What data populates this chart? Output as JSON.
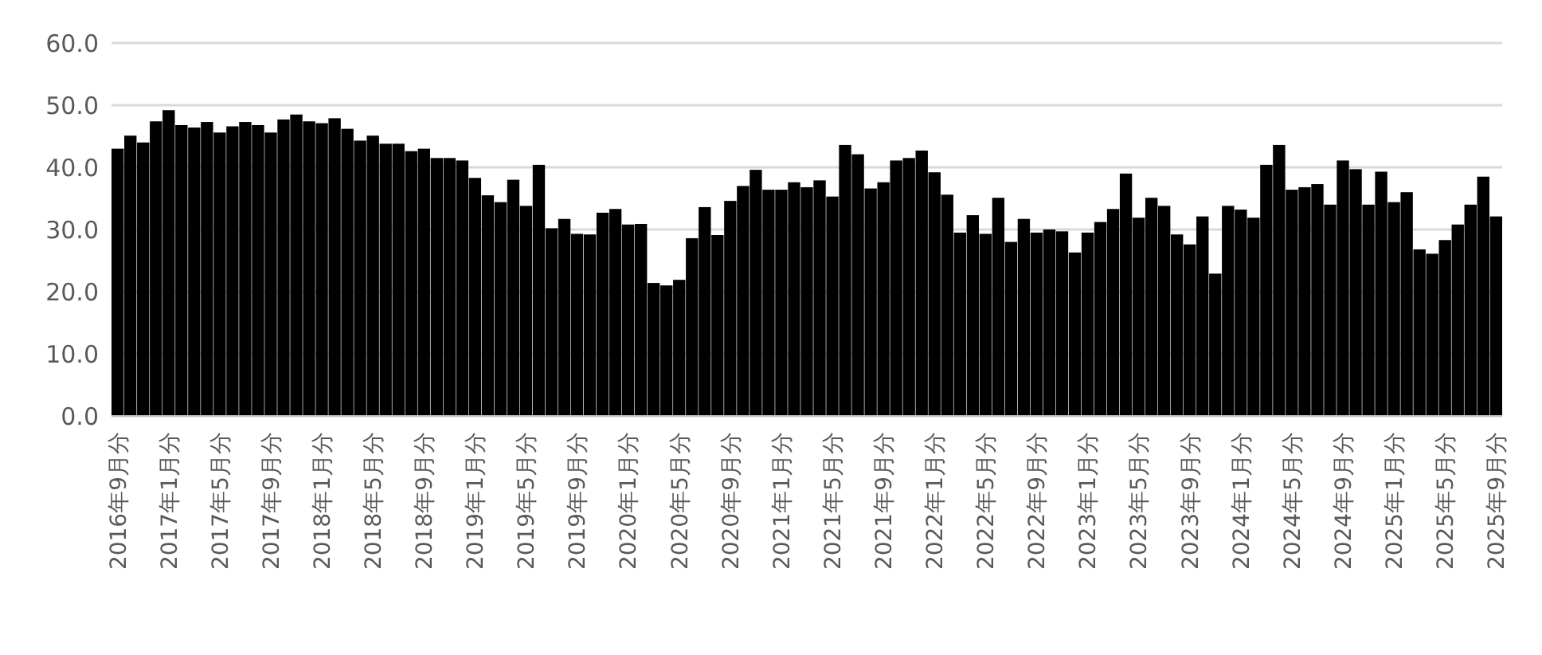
{
  "chart_data": {
    "type": "bar",
    "color": "#000000",
    "grid": "y",
    "categories": [
      "2016年9月分",
      null,
      null,
      null,
      "2017年1月分",
      null,
      null,
      null,
      "2017年5月分",
      null,
      null,
      null,
      "2017年9月分",
      null,
      null,
      null,
      "2018年1月分",
      null,
      null,
      null,
      "2018年5月分",
      null,
      null,
      null,
      "2018年9月分",
      null,
      null,
      null,
      "2019年1月分",
      null,
      null,
      null,
      "2019年5月分",
      null,
      null,
      null,
      "2019年9月分",
      null,
      null,
      null,
      "2020年1月分",
      null,
      null,
      null,
      "2020年5月分",
      null,
      null,
      null,
      "2020年9月分",
      null,
      null,
      null,
      "2021年1月分",
      null,
      null,
      null,
      "2021年5月分",
      null,
      null,
      null,
      "2021年9月分",
      null,
      null,
      null,
      "2022年1月分",
      null,
      null,
      null,
      "2022年5月分",
      null,
      null,
      null,
      "2022年9月分",
      null,
      null,
      null,
      "2023年1月分",
      null,
      null,
      null,
      "2023年5月分",
      null,
      null,
      null,
      "2023年9月分",
      null,
      null,
      null,
      "2024年1月分",
      null,
      null,
      null,
      "2024年5月分",
      null,
      null,
      null,
      "2024年9月分",
      null,
      null,
      null,
      "2025年1月分",
      null,
      null,
      null,
      "2025年5月分",
      null,
      null,
      null,
      "2025年9月分"
    ],
    "values": [
      43.0,
      45.1,
      44.0,
      47.4,
      49.2,
      46.8,
      46.4,
      47.3,
      45.6,
      46.6,
      47.3,
      46.8,
      45.6,
      47.7,
      48.5,
      47.4,
      47.1,
      47.9,
      46.2,
      44.3,
      45.1,
      43.8,
      43.8,
      42.6,
      43.0,
      41.5,
      41.5,
      41.1,
      38.3,
      35.5,
      34.4,
      38.0,
      33.8,
      40.4,
      30.2,
      31.7,
      29.3,
      29.2,
      32.7,
      33.3,
      30.8,
      30.9,
      21.4,
      21.0,
      21.9,
      28.6,
      33.6,
      29.1,
      34.6,
      37.0,
      39.6,
      36.4,
      36.4,
      37.6,
      36.8,
      37.9,
      35.3,
      43.6,
      42.1,
      36.6,
      37.6,
      41.1,
      41.5,
      42.7,
      39.2,
      35.6,
      29.5,
      32.3,
      29.3,
      35.1,
      28.0,
      31.7,
      29.5,
      30.0,
      29.7,
      26.3,
      29.5,
      31.2,
      33.3,
      39.0,
      31.9,
      35.1,
      33.8,
      29.2,
      27.6,
      32.1,
      22.9,
      33.8,
      33.2,
      31.9,
      40.4,
      43.6,
      36.4,
      36.8,
      37.3,
      34.0,
      41.1,
      39.7,
      34.0,
      39.3,
      34.4,
      36.0,
      26.8,
      26.1,
      28.3,
      30.8,
      34.0,
      38.5,
      32.1
    ],
    "ylim": [
      0,
      60
    ],
    "yticks": [
      {
        "value": 0,
        "label": "0.0"
      },
      {
        "value": 10,
        "label": "10.0"
      },
      {
        "value": 20,
        "label": "20.0"
      },
      {
        "value": 30,
        "label": "30.0"
      },
      {
        "value": 40,
        "label": "40.0"
      },
      {
        "value": 50,
        "label": "50.0"
      },
      {
        "value": 60,
        "label": "60.0"
      }
    ]
  }
}
